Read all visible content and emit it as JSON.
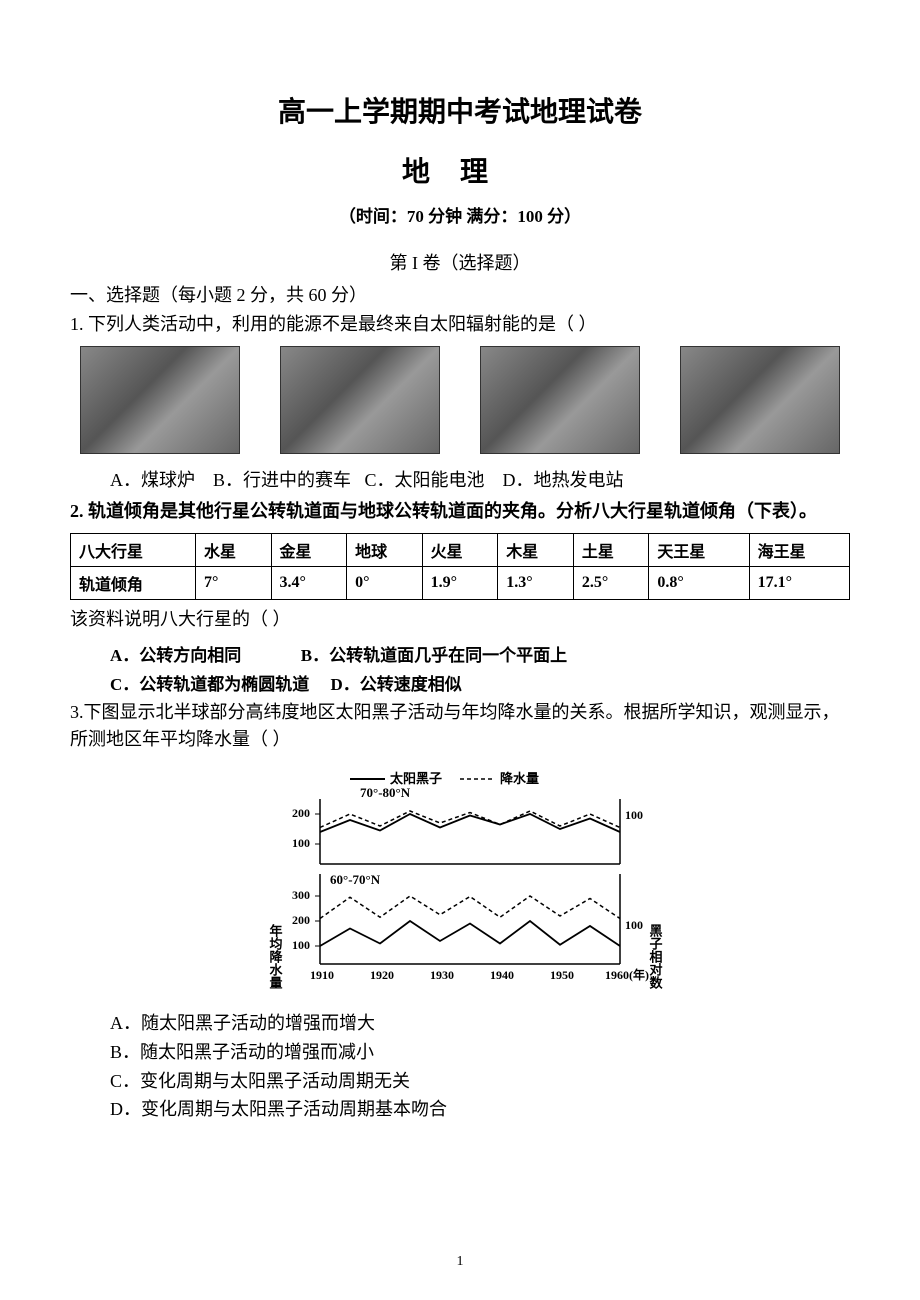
{
  "header": {
    "title_main": "高一上学期期中考试地理试卷",
    "title_sub": "地理",
    "exam_info": "（时间：70 分钟  满分：100 分）",
    "section_heading": "第 I 卷（选择题）",
    "instruction": "一、选择题（每小题 2 分，共 60 分）"
  },
  "q1": {
    "text": "1. 下列人类活动中，利用的能源不是最终来自太阳辐射能的是（    ）",
    "opt_a": "A．煤球炉",
    "opt_b": "B．行进中的赛车",
    "opt_c": "C．太阳能电池",
    "opt_d": "D．地热发电站"
  },
  "q2": {
    "text": "2. 轨道倾角是其他行星公转轨道面与地球公转轨道面的夹角。分析八大行星轨道倾角（下表）。",
    "table_header": [
      "八大行星",
      "水星",
      "金星",
      "地球",
      "火星",
      "木星",
      "土星",
      "天王星",
      "海王星"
    ],
    "table_row": [
      "轨道倾角",
      "7°",
      "3.4°",
      "0°",
      "1.9°",
      "1.3°",
      "2.5°",
      "0.8°",
      "17.1°"
    ],
    "followup": "该资料说明八大行星的（     ）",
    "opt_a": "A．公转方向相同",
    "opt_b": "B．公转轨道面几乎在同一个平面上",
    "opt_c": "C．公转轨道都为椭圆轨道",
    "opt_d": "D．公转速度相似"
  },
  "q3": {
    "text": "3.下图显示北半球部分高纬度地区太阳黑子活动与年均降水量的关系。根据所学知识，观测显示，所测地区年平均降水量（   ）",
    "opt_a": "A．随太阳黑子活动的增强而增大",
    "opt_b": "B．随太阳黑子活动的增强而减小",
    "opt_c": "C．变化周期与太阳黑子活动周期无关",
    "opt_d": "D．变化周期与太阳黑子活动周期基本吻合",
    "chart": {
      "legend_solid": "太阳黑子",
      "legend_dash": "降水量",
      "zone1": "70°-80°N",
      "zone2": "60°-70°N",
      "y_left_label": "年均降水量",
      "y_right_label": "黑子相对数",
      "y1_ticks": [
        "200",
        "100"
      ],
      "y1_right_tick": "100",
      "y2_ticks": [
        "300",
        "200",
        "100"
      ],
      "y2_right_tick": "100",
      "x_ticks": [
        "1910",
        "1920",
        "1930",
        "1940",
        "1950",
        "1960(年)"
      ],
      "series_top": {
        "solid_y": [
          140,
          180,
          145,
          200,
          155,
          195,
          165,
          200,
          150,
          185,
          140
        ],
        "dash_y": [
          155,
          200,
          160,
          210,
          170,
          205,
          165,
          210,
          160,
          200,
          155
        ]
      },
      "series_bottom": {
        "solid_y": [
          100,
          170,
          110,
          200,
          120,
          190,
          110,
          200,
          105,
          180,
          100
        ],
        "dash_y": [
          210,
          295,
          215,
          300,
          225,
          298,
          215,
          300,
          220,
          290,
          210
        ]
      },
      "x_values": [
        1910,
        1915,
        1920,
        1925,
        1930,
        1935,
        1940,
        1945,
        1950,
        1955,
        1960
      ],
      "colors": {
        "line": "#000000",
        "bg": "#ffffff"
      },
      "line_width_solid": 1.8,
      "line_width_dash": 1.5,
      "dash_pattern": "4,3"
    }
  },
  "page_number": "1"
}
